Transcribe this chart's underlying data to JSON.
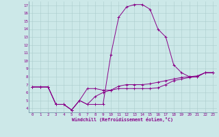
{
  "xlabel": "Windchill (Refroidissement éolien,°C)",
  "background_color": "#cce8e8",
  "line_color": "#880088",
  "grid_color": "#aacccc",
  "spine_color": "#7799aa",
  "xlim": [
    -0.5,
    23.5
  ],
  "ylim": [
    3.5,
    17.5
  ],
  "xticks": [
    0,
    1,
    2,
    3,
    4,
    5,
    6,
    7,
    8,
    9,
    10,
    11,
    12,
    13,
    14,
    15,
    16,
    17,
    18,
    19,
    20,
    21,
    22,
    23
  ],
  "yticks": [
    4,
    5,
    6,
    7,
    8,
    9,
    10,
    11,
    12,
    13,
    14,
    15,
    16,
    17
  ],
  "series": [
    [
      6.7,
      6.7,
      6.7,
      4.5,
      4.5,
      3.8,
      5.0,
      4.5,
      4.5,
      4.5,
      10.8,
      15.5,
      16.8,
      17.1,
      17.1,
      16.5,
      14.0,
      13.0,
      9.5,
      8.5,
      8.0,
      8.0,
      8.5,
      8.5
    ],
    [
      6.7,
      6.7,
      6.7,
      4.5,
      4.5,
      3.8,
      5.0,
      6.5,
      6.5,
      6.3,
      6.3,
      6.5,
      6.5,
      6.5,
      6.5,
      6.5,
      6.6,
      7.0,
      7.5,
      7.7,
      7.9,
      8.0,
      8.5,
      8.5
    ],
    [
      6.7,
      6.7,
      6.7,
      4.5,
      4.5,
      3.8,
      5.0,
      4.5,
      5.5,
      6.0,
      6.3,
      6.8,
      7.0,
      7.0,
      7.0,
      7.1,
      7.3,
      7.5,
      7.7,
      7.9,
      8.0,
      8.1,
      8.5,
      8.5
    ]
  ]
}
